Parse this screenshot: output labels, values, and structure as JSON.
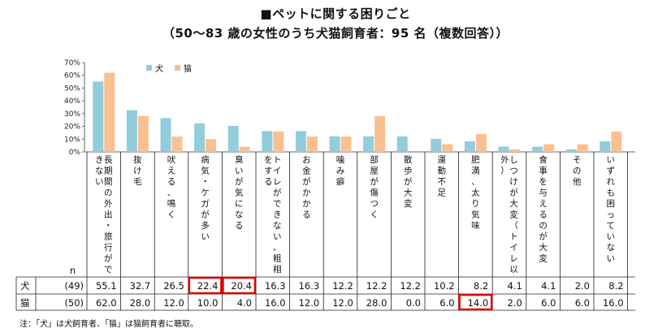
{
  "title": "■ペットに関する困りごと",
  "subtitle": "（50～83 歳の女性のうち犬猫飼育者：95 名（複数回答））",
  "colors": {
    "dog": "#92cddc",
    "cat": "#fac090",
    "highlight": "#e00000",
    "grid": "#999999"
  },
  "legend": {
    "dog": "犬",
    "cat": "猫"
  },
  "n_label": "n",
  "rows": [
    {
      "label": "犬",
      "n": "(49)"
    },
    {
      "label": "猫",
      "n": "(50)"
    }
  ],
  "note": "注：「犬」は犬飼育者、「猫」は猫飼育者に聴取。",
  "chart_data": {
    "type": "bar",
    "y_ticks": [
      "0%",
      "10%",
      "20%",
      "30%",
      "40%",
      "50%",
      "60%",
      "70%"
    ],
    "ylim": [
      0,
      70
    ],
    "categories": [
      "長期間の外出・旅行ができない",
      "抜け毛",
      "吠える、鳴く",
      "病気・ケガが多い",
      "臭いが気になる",
      "トイレができない、粗相をする",
      "お金がかかる",
      "噛み癖",
      "部屋が傷つく",
      "散歩が大変",
      "運動不足",
      "肥満、太り気味",
      "しつけが大変（トイレ以外）",
      "食事を与えるのが大変",
      "その他",
      "いずれも困っていない"
    ],
    "series": [
      {
        "name": "犬",
        "values": [
          55.1,
          32.7,
          26.5,
          22.4,
          20.4,
          16.3,
          16.3,
          12.2,
          12.2,
          12.2,
          10.2,
          8.2,
          4.1,
          4.1,
          2.0,
          8.2
        ],
        "labels": [
          "55.1",
          "32.7",
          "26.5",
          "22.4",
          "20.4",
          "16.3",
          "16.3",
          "12.2",
          "12.2",
          "12.2",
          "10.2",
          "8.2",
          "4.1",
          "4.1",
          "2.0",
          "8.2"
        ]
      },
      {
        "name": "猫",
        "values": [
          62.0,
          28.0,
          12.0,
          10.0,
          4.0,
          16.0,
          12.0,
          12.0,
          28.0,
          0.0,
          6.0,
          14.0,
          2.0,
          6.0,
          6.0,
          16.0
        ],
        "labels": [
          "62.0",
          "28.0",
          "12.0",
          "10.0",
          "4.0",
          "16.0",
          "12.0",
          "12.0",
          "28.0",
          "0.0",
          "6.0",
          "14.0",
          "2.0",
          "6.0",
          "6.0",
          "16.0"
        ]
      }
    ],
    "highlighted_cells": [
      {
        "series": 0,
        "index": 3
      },
      {
        "series": 0,
        "index": 4
      },
      {
        "series": 1,
        "index": 11
      }
    ]
  }
}
